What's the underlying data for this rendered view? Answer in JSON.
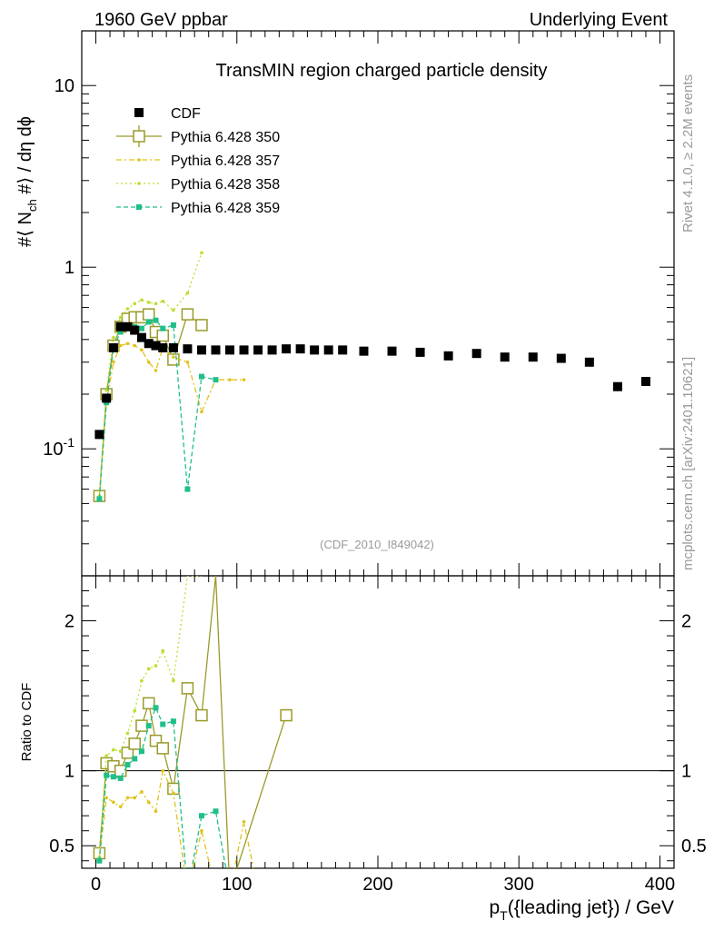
{
  "header": {
    "left": "1960 GeV ppbar",
    "right": "Underlying Event"
  },
  "side": {
    "rivet": "Rivet 4.1.0, ≥ 2.2M events",
    "mcplots": "mcplots.cern.ch [arXiv:2401.10621]"
  },
  "chart_data": {
    "type": "scatter",
    "title": "TransMIN region charged particle density",
    "watermark": "(CDF_2010_I849042)",
    "ylabel": "#⟨ N_ch #⟩ / dη dϕ",
    "ylabel_parts": {
      "pre": "#⟨ N",
      "sub": "ch",
      "post": " #⟩ / dη dϕ"
    },
    "ratio_ylabel": "Ratio to CDF",
    "xlabel_parts": {
      "pre": "p",
      "sub": "T",
      "post": "({leading jet}) / GeV"
    },
    "xlim": [
      -10,
      410
    ],
    "ylim": [
      0.02,
      20
    ],
    "ratio_ylim": [
      0.35,
      2.3
    ],
    "x_ticks": [
      "0",
      "100",
      "200",
      "300",
      "400"
    ],
    "y_ticks": {
      "1": "1",
      "10": "10",
      "0.1": "10^-1"
    },
    "ratio_ticks": {
      "0.5": "0.5",
      "1": "1",
      "2": "2"
    },
    "colors": {
      "cdf": "#000000",
      "p350": "#9a9a2a",
      "p357": "#e0c21a",
      "p358": "#b9df2a",
      "p359": "#1fbf8a"
    },
    "legend": [
      {
        "key": "cdf",
        "label": "CDF"
      },
      {
        "key": "p350",
        "label": "Pythia 6.428 350"
      },
      {
        "key": "p357",
        "label": "Pythia 6.428 357"
      },
      {
        "key": "p358",
        "label": "Pythia 6.428 358"
      },
      {
        "key": "p359",
        "label": "Pythia 6.428 359"
      }
    ],
    "cdf": {
      "x": [
        2.5,
        7.5,
        12.5,
        17.5,
        22.5,
        27.5,
        32.5,
        37.5,
        42.5,
        47.5,
        55,
        65,
        75,
        85,
        95,
        105,
        115,
        125,
        135,
        145,
        155,
        165,
        175,
        190,
        210,
        230,
        250,
        270,
        290,
        310,
        330,
        350,
        370,
        390
      ],
      "y": [
        0.12,
        0.19,
        0.36,
        0.47,
        0.47,
        0.45,
        0.41,
        0.38,
        0.37,
        0.36,
        0.36,
        0.355,
        0.35,
        0.35,
        0.35,
        0.35,
        0.35,
        0.35,
        0.355,
        0.355,
        0.35,
        0.35,
        0.35,
        0.345,
        0.345,
        0.34,
        0.325,
        0.335,
        0.32,
        0.32,
        0.315,
        0.3,
        0.22,
        0.235
      ]
    },
    "series": [
      {
        "key": "p350",
        "name": "Pythia 6.428 350",
        "marker": "open-square",
        "dash": "",
        "x": [
          2.5,
          7.5,
          12.5,
          17.5,
          22.5,
          27.5,
          32.5,
          37.5,
          42.5,
          47.5,
          55,
          65,
          75
        ],
        "y": [
          0.055,
          0.2,
          0.37,
          0.47,
          0.52,
          0.53,
          0.53,
          0.55,
          0.44,
          0.42,
          0.31,
          0.55,
          0.48
        ],
        "ratio_x": [
          2.5,
          7.5,
          12.5,
          17.5,
          22.5,
          27.5,
          32.5,
          37.5,
          42.5,
          47.5,
          55,
          65,
          75,
          85,
          95,
          135
        ],
        "ratio_y": [
          0.45,
          1.05,
          1.03,
          1.0,
          1.12,
          1.18,
          1.3,
          1.45,
          1.2,
          1.15,
          0.88,
          1.55,
          1.37,
          2.3,
          0.2,
          1.37
        ]
      },
      {
        "key": "p357",
        "name": "Pythia 6.428 357",
        "marker": "dot",
        "dash": "6,3,2,3",
        "x": [
          2.5,
          7.5,
          12.5,
          17.5,
          22.5,
          27.5,
          32.5,
          37.5,
          42.5,
          47.5,
          55,
          65,
          75,
          85,
          95,
          105
        ],
        "y": [
          0.055,
          0.18,
          0.3,
          0.37,
          0.38,
          0.37,
          0.35,
          0.3,
          0.27,
          0.36,
          0.32,
          0.3,
          0.16,
          0.24,
          0.24,
          0.24
        ],
        "ratio_x": [
          2.5,
          7.5,
          12.5,
          17.5,
          22.5,
          27.5,
          32.5,
          37.5,
          42.5,
          47.5,
          55,
          65,
          75,
          85,
          95,
          105,
          115
        ],
        "ratio_y": [
          0.42,
          0.82,
          0.79,
          0.76,
          0.82,
          0.82,
          0.86,
          0.79,
          0.73,
          1.0,
          0.85,
          0.2,
          0.6,
          0.2,
          0.2,
          0.66,
          0.2
        ]
      },
      {
        "key": "p358",
        "name": "Pythia 6.428 358",
        "marker": "dot",
        "dash": "2,3",
        "x": [
          2.5,
          7.5,
          12.5,
          17.5,
          22.5,
          27.5,
          32.5,
          37.5,
          42.5,
          47.5,
          55,
          65,
          75
        ],
        "y": [
          0.055,
          0.21,
          0.41,
          0.53,
          0.59,
          0.63,
          0.66,
          0.64,
          0.63,
          0.65,
          0.58,
          0.72,
          1.2
        ],
        "ratio_x": [
          2.5,
          7.5,
          12.5,
          17.5,
          22.5,
          27.5,
          32.5,
          37.5,
          42.5,
          47.5,
          55,
          65,
          75
        ],
        "ratio_y": [
          0.42,
          1.1,
          1.14,
          1.13,
          1.25,
          1.4,
          1.6,
          1.68,
          1.7,
          1.8,
          1.6,
          2.3,
          2.3
        ]
      },
      {
        "key": "p359",
        "name": "Pythia 6.428 359",
        "marker": "filled-square",
        "dash": "5,3",
        "x": [
          2.5,
          7.5,
          12.5,
          17.5,
          22.5,
          27.5,
          32.5,
          37.5,
          42.5,
          47.5,
          55,
          65,
          75,
          85
        ],
        "y": [
          0.053,
          0.18,
          0.36,
          0.44,
          0.47,
          0.47,
          0.46,
          0.5,
          0.51,
          0.46,
          0.48,
          0.06,
          0.25,
          0.24
        ],
        "ratio_x": [
          2.5,
          7.5,
          12.5,
          17.5,
          22.5,
          27.5,
          32.5,
          37.5,
          42.5,
          47.5,
          55,
          65,
          75,
          85,
          95
        ],
        "ratio_y": [
          0.4,
          0.97,
          0.96,
          0.95,
          1.04,
          1.08,
          1.13,
          1.3,
          1.42,
          1.31,
          1.33,
          0.2,
          0.7,
          0.73,
          0.2
        ]
      }
    ]
  }
}
